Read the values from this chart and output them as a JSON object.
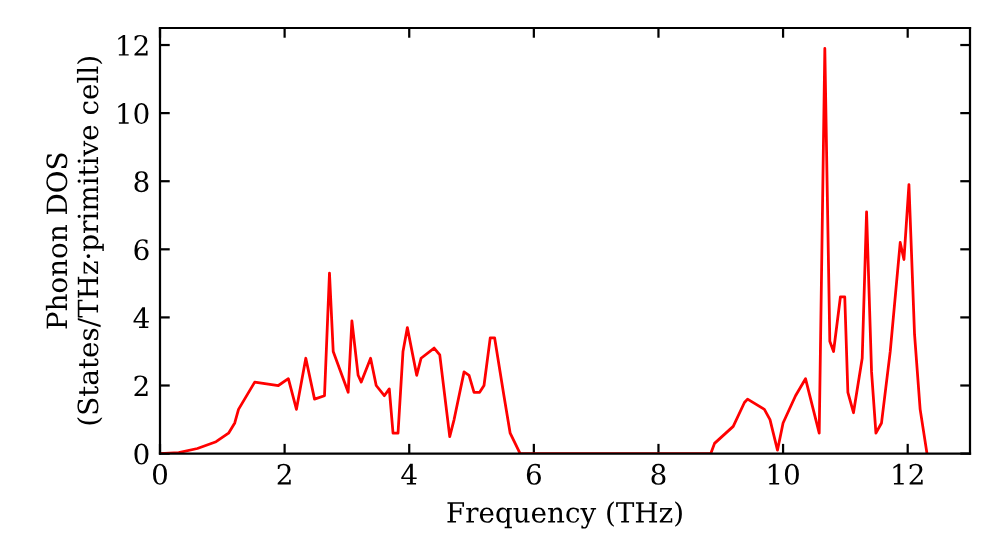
{
  "chart_data": {
    "type": "line",
    "xlabel": "Frequency (THz)",
    "ylabel": "Phonon DOS\n(States/THz·primitive cell)",
    "xlim": [
      0,
      13
    ],
    "ylim": [
      0,
      12.5
    ],
    "xticks": [
      0,
      2,
      4,
      6,
      8,
      10,
      12
    ],
    "yticks": [
      0,
      2,
      4,
      6,
      8,
      10,
      12
    ],
    "grid": false,
    "legend": false,
    "marker": "none",
    "line_style": "solid",
    "series": [
      {
        "color": "#ff0000",
        "x": [
          0,
          0.3,
          0.6,
          0.9,
          1.1,
          1.2,
          1.26,
          1.52,
          1.9,
          2.06,
          2.19,
          2.34,
          2.48,
          2.64,
          2.72,
          2.78,
          3.02,
          3.08,
          3.18,
          3.23,
          3.38,
          3.47,
          3.6,
          3.68,
          3.74,
          3.82,
          3.9,
          3.97,
          4.12,
          4.19,
          4.4,
          4.49,
          4.65,
          4.72,
          4.88,
          4.96,
          5.04,
          5.13,
          5.2,
          5.3,
          5.37,
          5.52,
          5.62,
          5.78,
          8.84,
          8.9,
          9.2,
          9.38,
          9.43,
          9.7,
          9.79,
          9.91,
          10.0,
          10.2,
          10.36,
          10.58,
          10.67,
          10.75,
          10.81,
          10.92,
          10.99,
          11.04,
          11.13,
          11.27,
          11.34,
          11.42,
          11.49,
          11.58,
          11.72,
          11.85,
          11.88,
          11.94,
          12.02,
          12.11,
          12.2,
          12.31
        ],
        "values": [
          0,
          0.03,
          0.15,
          0.35,
          0.6,
          0.9,
          1.3,
          2.1,
          2.0,
          2.2,
          1.3,
          2.8,
          1.6,
          1.7,
          5.3,
          3.0,
          1.8,
          3.9,
          2.3,
          2.1,
          2.8,
          2.0,
          1.7,
          1.9,
          0.6,
          0.6,
          3.0,
          3.7,
          2.3,
          2.8,
          3.1,
          2.9,
          0.5,
          1.0,
          2.4,
          2.3,
          1.8,
          1.8,
          2.0,
          3.4,
          3.4,
          1.7,
          0.6,
          0,
          0,
          0.3,
          0.8,
          1.5,
          1.6,
          1.3,
          1.0,
          0.1,
          0.9,
          1.7,
          2.2,
          0.6,
          11.9,
          3.3,
          3.0,
          4.6,
          4.6,
          1.8,
          1.2,
          2.8,
          7.1,
          2.4,
          0.6,
          0.9,
          3.0,
          5.6,
          6.2,
          5.7,
          7.9,
          3.5,
          1.3,
          0
        ]
      }
    ]
  }
}
